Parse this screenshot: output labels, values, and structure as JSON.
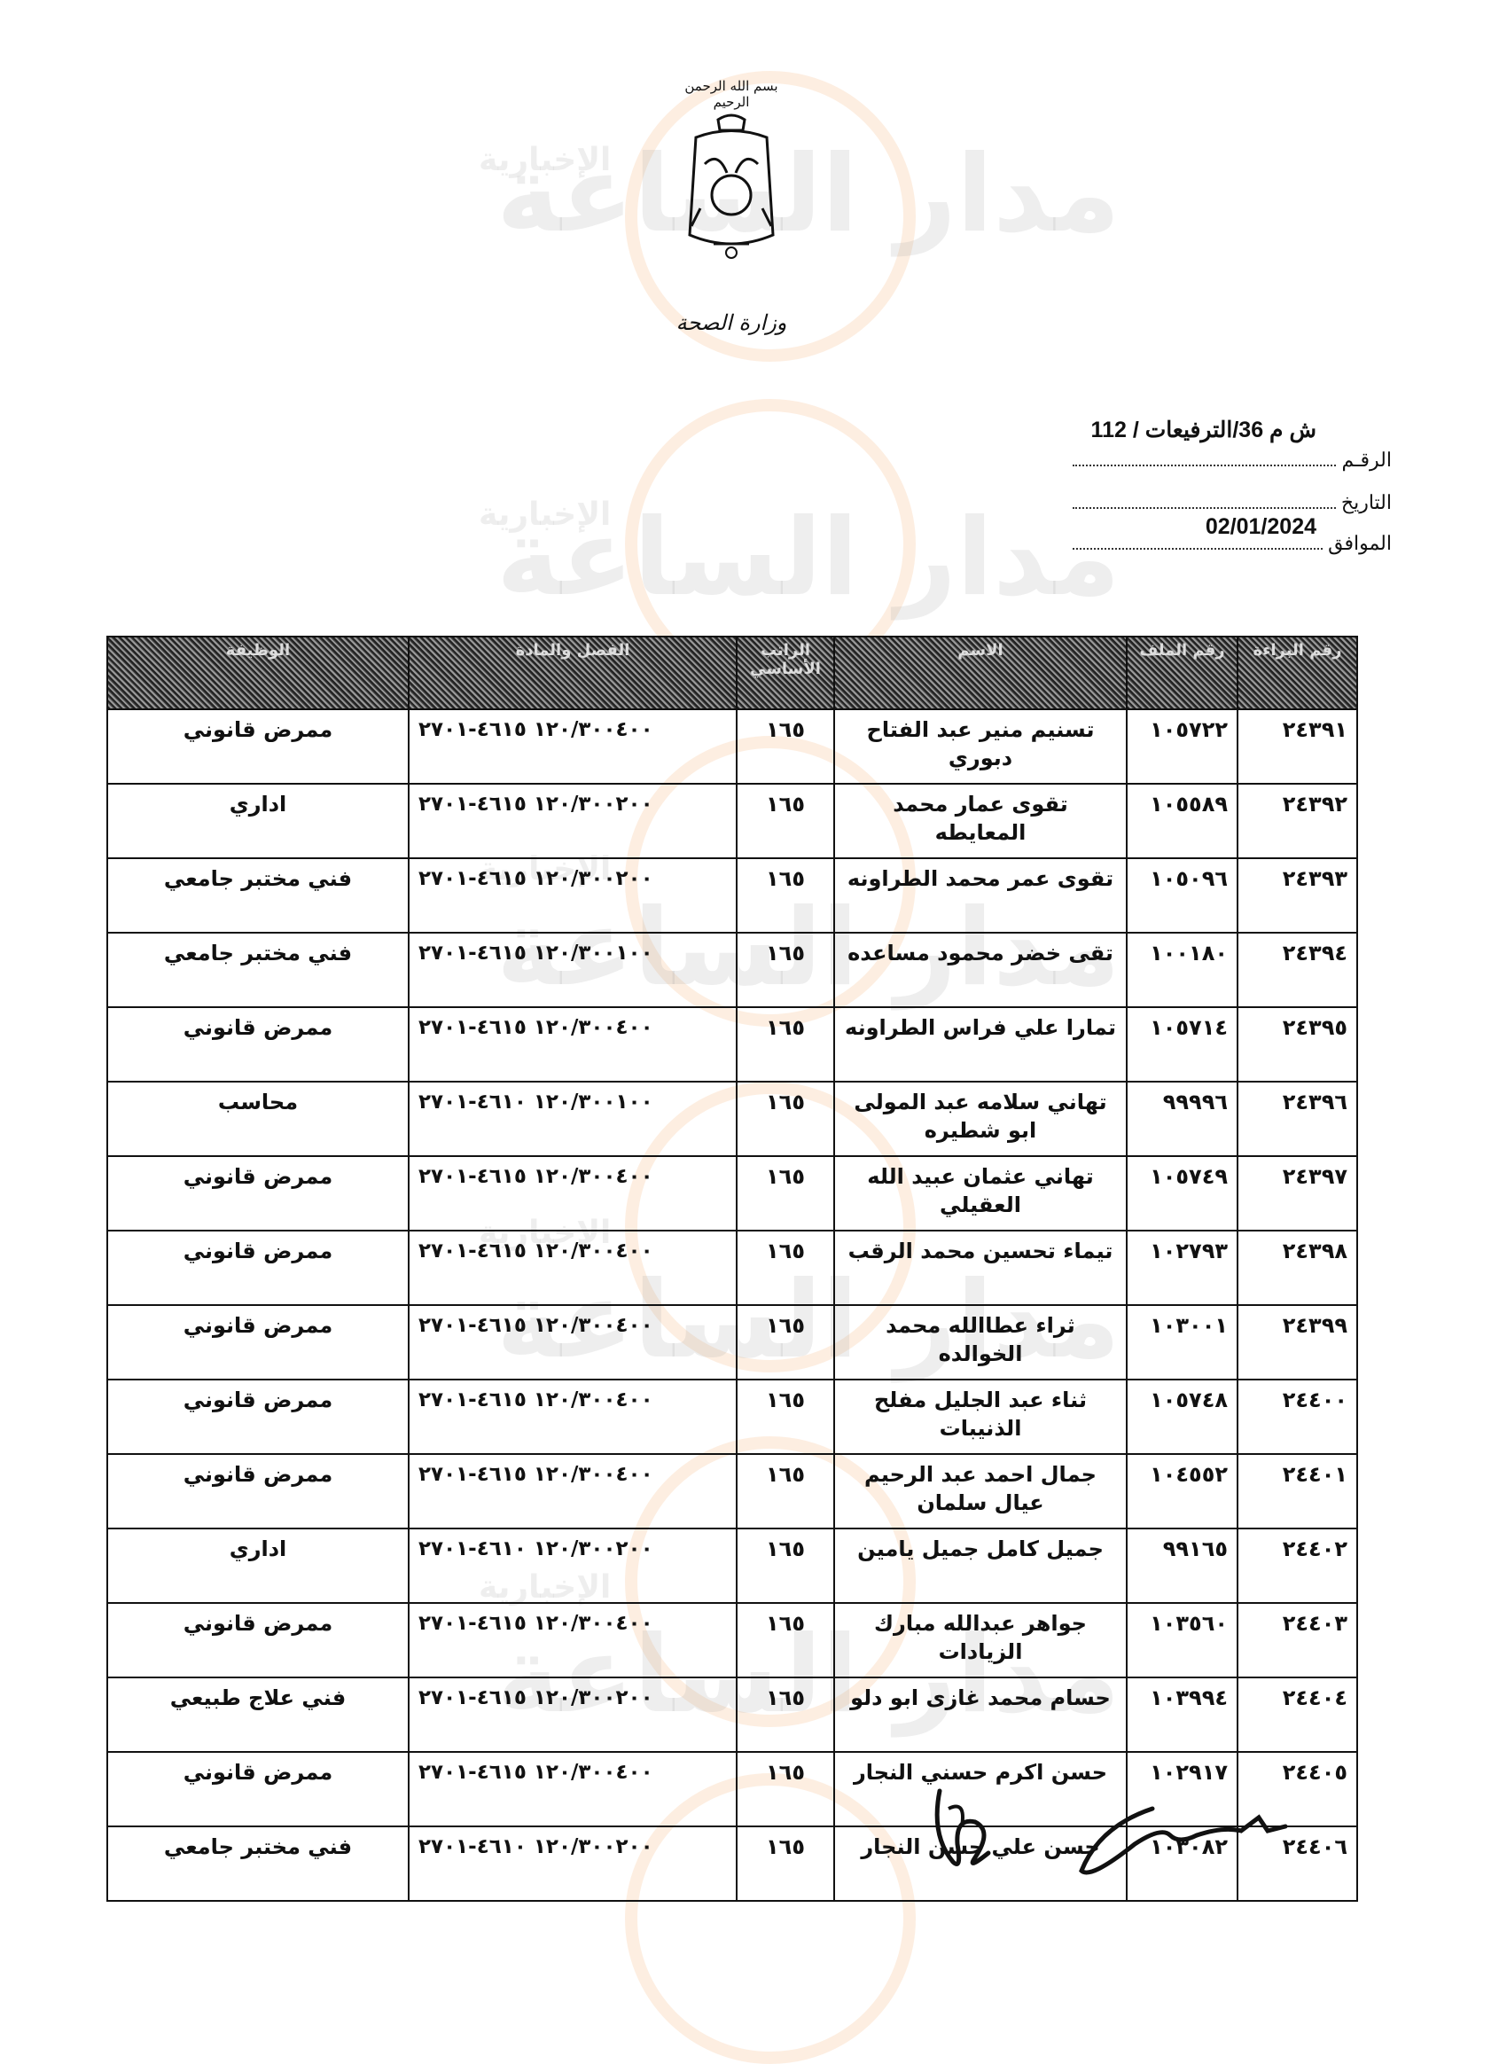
{
  "watermark": {
    "brand": "مدار الساعة",
    "sub": "الإخبارية"
  },
  "letterhead": {
    "basmala": "بسم الله الرحمن الرحيم",
    "ministry": "وزارة الصحة"
  },
  "reference": {
    "number_value": "ش م 36/الترفيعات / 112",
    "number_label": "الرقـم",
    "date_label": "التاريخ",
    "date_value": "02/01/2024",
    "corresponding_label": "الموافق"
  },
  "table": {
    "headers": [
      "رقم البراءة",
      "رقم الملف",
      "الاسم",
      "الراتب الأساسي",
      "الفصل والمادة",
      "الوظيفة"
    ],
    "rows": [
      {
        "cert": "٢٤٣٩١",
        "file": "١٠٥٧٢٢",
        "name": "تسنيم منير عبد الفتاح دبوري",
        "salary": "١٦٥",
        "fund": "١٢٠/٣٠٠٤٠٠  ٤٦١٥-٢٧٠١",
        "job": "ممرض قانوني"
      },
      {
        "cert": "٢٤٣٩٢",
        "file": "١٠٥٥٨٩",
        "name": "تقوى عمار محمد المعايطه",
        "salary": "١٦٥",
        "fund": "١٢٠/٣٠٠٢٠٠  ٤٦١٥-٢٧٠١",
        "job": "اداري"
      },
      {
        "cert": "٢٤٣٩٣",
        "file": "١٠٥٠٩٦",
        "name": "تقوى عمر محمد الطراونه",
        "salary": "١٦٥",
        "fund": "١٢٠/٣٠٠٢٠٠  ٤٦١٥-٢٧٠١",
        "job": "فني مختبر جامعي"
      },
      {
        "cert": "٢٤٣٩٤",
        "file": "١٠٠١٨٠",
        "name": "تقى خضر محمود مساعده",
        "salary": "١٦٥",
        "fund": "١٢٠/٣٠٠١٠٠  ٤٦١٥-٢٧٠١",
        "job": "فني مختبر جامعي"
      },
      {
        "cert": "٢٤٣٩٥",
        "file": "١٠٥٧١٤",
        "name": "تمارا علي فراس الطراونه",
        "salary": "١٦٥",
        "fund": "١٢٠/٣٠٠٤٠٠  ٤٦١٥-٢٧٠١",
        "job": "ممرض قانوني"
      },
      {
        "cert": "٢٤٣٩٦",
        "file": "٩٩٩٩٦",
        "name": "تهاني سلامه عبد المولى ابو شطيره",
        "salary": "١٦٥",
        "fund": "١٢٠/٣٠٠١٠٠  ٤٦١٠-٢٧٠١",
        "job": "محاسب"
      },
      {
        "cert": "٢٤٣٩٧",
        "file": "١٠٥٧٤٩",
        "name": "تهاني عثمان عبيد الله العقيلي",
        "salary": "١٦٥",
        "fund": "١٢٠/٣٠٠٤٠٠  ٤٦١٥-٢٧٠١",
        "job": "ممرض قانوني"
      },
      {
        "cert": "٢٤٣٩٨",
        "file": "١٠٢٧٩٣",
        "name": "تيماء تحسين محمد الرقب",
        "salary": "١٦٥",
        "fund": "١٢٠/٣٠٠٤٠٠  ٤٦١٥-٢٧٠١",
        "job": "ممرض قانوني"
      },
      {
        "cert": "٢٤٣٩٩",
        "file": "١٠٣٠٠١",
        "name": "ثراء عطاالله محمد الخوالده",
        "salary": "١٦٥",
        "fund": "١٢٠/٣٠٠٤٠٠  ٤٦١٥-٢٧٠١",
        "job": "ممرض قانوني"
      },
      {
        "cert": "٢٤٤٠٠",
        "file": "١٠٥٧٤٨",
        "name": "ثناء عبد الجليل مفلح الذنيبات",
        "salary": "١٦٥",
        "fund": "١٢٠/٣٠٠٤٠٠  ٤٦١٥-٢٧٠١",
        "job": "ممرض قانوني"
      },
      {
        "cert": "٢٤٤٠١",
        "file": "١٠٤٥٥٢",
        "name": "جمال احمد عبد الرحيم عيال سلمان",
        "salary": "١٦٥",
        "fund": "١٢٠/٣٠٠٤٠٠  ٤٦١٥-٢٧٠١",
        "job": "ممرض قانوني"
      },
      {
        "cert": "٢٤٤٠٢",
        "file": "٩٩١٦٥",
        "name": "جميل كامل جميل يامين",
        "salary": "١٦٥",
        "fund": "١٢٠/٣٠٠٢٠٠  ٤٦١٠-٢٧٠١",
        "job": "اداري"
      },
      {
        "cert": "٢٤٤٠٣",
        "file": "١٠٣٥٦٠",
        "name": "جواهر عبدالله مبارك الزيادات",
        "salary": "١٦٥",
        "fund": "١٢٠/٣٠٠٤٠٠  ٤٦١٥-٢٧٠١",
        "job": "ممرض قانوني"
      },
      {
        "cert": "٢٤٤٠٤",
        "file": "١٠٣٩٩٤",
        "name": "حسام محمد غازى ابو دلو",
        "salary": "١٦٥",
        "fund": "١٢٠/٣٠٠٢٠٠  ٤٦١٥-٢٧٠١",
        "job": "فني علاج طبيعي"
      },
      {
        "cert": "٢٤٤٠٥",
        "file": "١٠٢٩١٧",
        "name": "حسن اكرم حسني النجار",
        "salary": "١٦٥",
        "fund": "١٢٠/٣٠٠٤٠٠  ٤٦١٥-٢٧٠١",
        "job": "ممرض قانوني"
      },
      {
        "cert": "٢٤٤٠٦",
        "file": "١٠٣٠٨٢",
        "name": "حسن علي حسن النجار",
        "salary": "١٦٥",
        "fund": "١٢٠/٣٠٠٢٠٠  ٤٦١٠-٢٧٠١",
        "job": "فني مختبر جامعي"
      }
    ]
  }
}
